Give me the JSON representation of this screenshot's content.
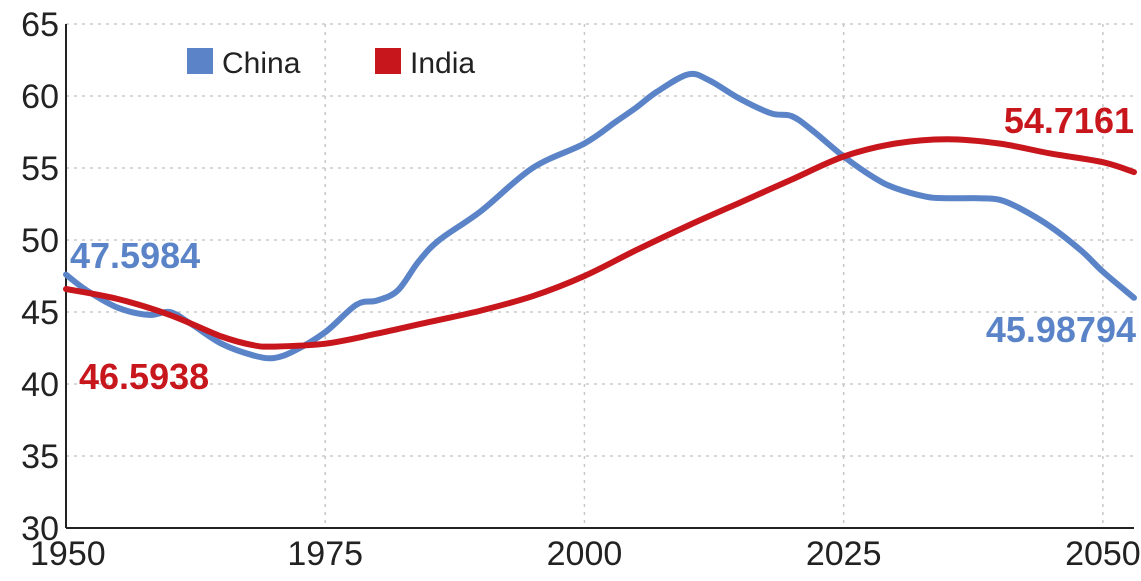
{
  "chart_data": {
    "type": "line",
    "x_ticks": [
      "1950",
      "1975",
      "2000",
      "2025",
      "2050"
    ],
    "y_ticks": [
      "30",
      "35",
      "40",
      "45",
      "50",
      "55",
      "60",
      "65"
    ],
    "xlim": [
      1950,
      2053
    ],
    "ylim": [
      30,
      65
    ],
    "grid": true,
    "legend_position": "top-left",
    "series": [
      {
        "name": "China",
        "color": "#5b84c8",
        "x": [
          1950,
          1952,
          1955,
          1958,
          1960,
          1962,
          1965,
          1968,
          1970,
          1972,
          1975,
          1978,
          1980,
          1982,
          1984,
          1986,
          1990,
          1995,
          2000,
          2003,
          2005,
          2007,
          2010,
          2012,
          2015,
          2018,
          2020,
          2022,
          2025,
          2028,
          2030,
          2033,
          2035,
          2038,
          2040,
          2042,
          2045,
          2048,
          2050,
          2053
        ],
        "y": [
          47.5984,
          46.5,
          45.3,
          44.8,
          45.0,
          44.2,
          42.8,
          42.0,
          41.8,
          42.3,
          43.6,
          45.5,
          45.8,
          46.5,
          48.5,
          50.0,
          52.0,
          55.0,
          56.7,
          58.2,
          59.2,
          60.3,
          61.5,
          61.1,
          59.8,
          58.8,
          58.6,
          57.6,
          55.8,
          54.3,
          53.6,
          53.0,
          52.9,
          52.9,
          52.8,
          52.2,
          50.9,
          49.2,
          47.8,
          45.98794
        ]
      },
      {
        "name": "India",
        "color": "#c8161d",
        "x": [
          1950,
          1955,
          1960,
          1965,
          1968,
          1970,
          1975,
          1980,
          1985,
          1990,
          1995,
          2000,
          2005,
          2010,
          2015,
          2020,
          2025,
          2030,
          2035,
          2040,
          2045,
          2050,
          2053
        ],
        "y": [
          46.5938,
          45.9,
          44.8,
          43.3,
          42.7,
          42.6,
          42.8,
          43.5,
          44.3,
          45.1,
          46.1,
          47.5,
          49.3,
          51.0,
          52.6,
          54.2,
          55.8,
          56.7,
          57.0,
          56.7,
          56.0,
          55.4,
          54.7161
        ]
      }
    ],
    "annotations": [
      {
        "series": "China",
        "text": "47.5984",
        "x": 1950,
        "y": 47.5984
      },
      {
        "series": "India",
        "text": "46.5938",
        "x": 1950,
        "y": 46.5938
      },
      {
        "series": "India",
        "text": "54.7161",
        "x": 2053,
        "y": 54.7161
      },
      {
        "series": "China",
        "text": "45.98794",
        "x": 2053,
        "y": 45.98794
      }
    ]
  }
}
